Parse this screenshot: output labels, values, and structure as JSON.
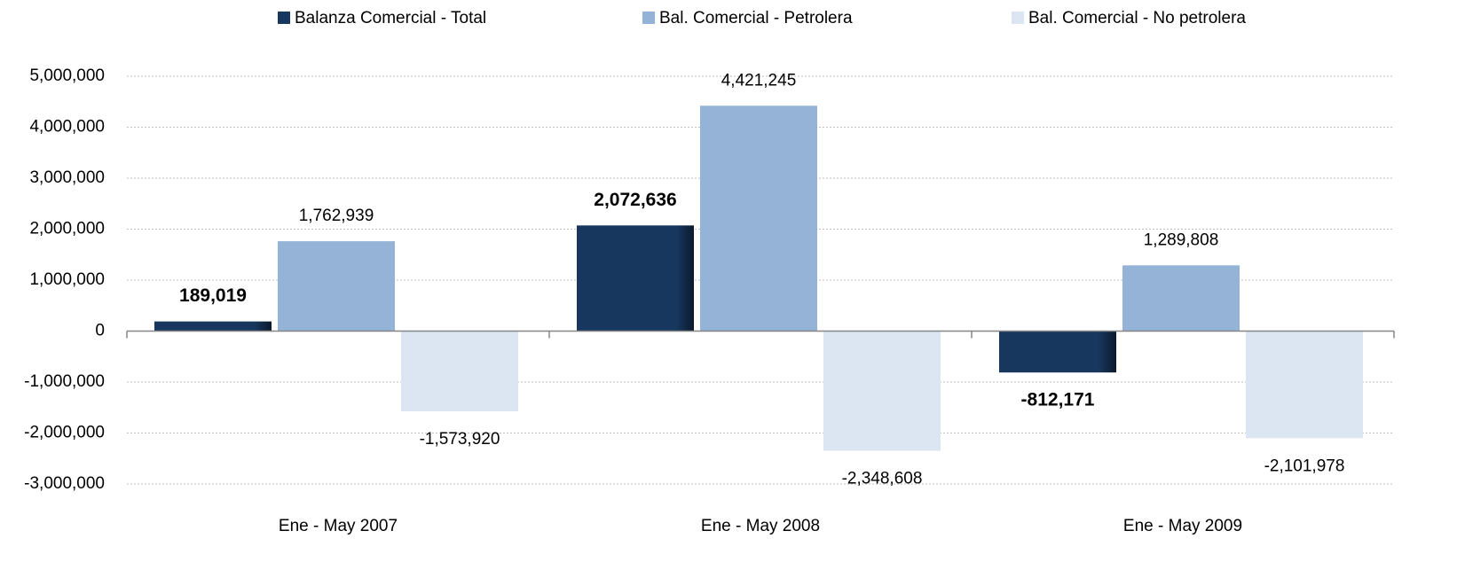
{
  "chart_data": {
    "type": "bar",
    "categories": [
      "Ene - May  2007",
      "Ene - May  2008",
      "Ene - May  2009"
    ],
    "series": [
      {
        "name": "Balanza Comercial - Total",
        "color": "#17375e",
        "values": [
          189019,
          2072636,
          -812171
        ],
        "value_labels": [
          "189,019",
          "2,072,636",
          "-812,171"
        ]
      },
      {
        "name": "Bal. Comercial - Petrolera",
        "color": "#95b3d7",
        "values": [
          1762939,
          4421245,
          1289808
        ],
        "value_labels": [
          "1,762,939",
          "4,421,245",
          "1,289,808"
        ]
      },
      {
        "name": "Bal. Comercial - No petrolera",
        "color": "#dce6f2",
        "values": [
          -1573920,
          -2348608,
          -2101978
        ],
        "value_labels": [
          "-1,573,920",
          "-2,348,608",
          "-2,101,978"
        ]
      }
    ],
    "ylim": [
      -3000000,
      5000000
    ],
    "yticks": [
      {
        "value": -3000000,
        "label": "-3,000,000"
      },
      {
        "value": -2000000,
        "label": "-2,000,000"
      },
      {
        "value": -1000000,
        "label": "-1,000,000"
      },
      0,
      {
        "value": 1000000,
        "label": "1,000,000"
      },
      {
        "value": 2000000,
        "label": "2,000,000"
      },
      {
        "value": 3000000,
        "label": "3,000,000"
      },
      {
        "value": 4000000,
        "label": "4,000,000"
      },
      {
        "value": 5000000,
        "label": "5,000,000"
      }
    ],
    "grid": true,
    "legend": "top"
  }
}
